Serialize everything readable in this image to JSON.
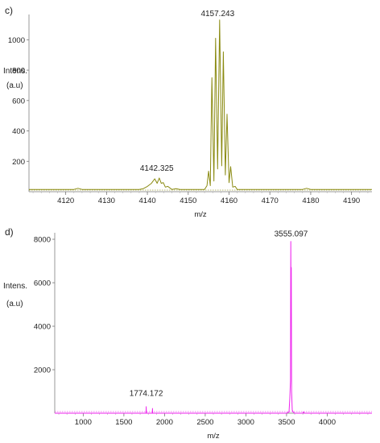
{
  "chart_data": [
    {
      "type": "line",
      "panel_label": "c)",
      "xlabel": "m/z",
      "ylabel": [
        "Intens.",
        "(a.u)"
      ],
      "xlim": [
        4111,
        4195
      ],
      "ylim": [
        0,
        1145
      ],
      "x_ticks": [
        4120,
        4130,
        4140,
        4150,
        4160,
        4170,
        4180,
        4190
      ],
      "y_ticks": [
        200,
        400,
        600,
        800,
        1000
      ],
      "color": "#8a8a10",
      "peak_labels": [
        {
          "text": "4142.325",
          "x": 4142.3,
          "y": 110
        },
        {
          "text": "4157.243",
          "x": 4157.2,
          "y": 1130
        }
      ],
      "series": [
        {
          "x": [
            4111,
            4122,
            4123,
            4124,
            4138,
            4139,
            4140,
            4141,
            4141.8,
            4142.4,
            4142.9,
            4143.4,
            4143.9,
            4144.4,
            4145,
            4146,
            4147,
            4148,
            4154,
            4154.6,
            4155,
            4155.4,
            4155.8,
            4156.3,
            4156.7,
            4157.2,
            4157.7,
            4158.2,
            4158.6,
            4159.1,
            4159.5,
            4160,
            4160.4,
            4160.9,
            4161.5,
            4162,
            4163,
            4178,
            4179,
            4180,
            4181,
            4195
          ],
          "y": [
            15,
            15,
            22,
            15,
            15,
            20,
            35,
            55,
            85,
            55,
            90,
            55,
            60,
            30,
            35,
            15,
            20,
            15,
            15,
            40,
            135,
            40,
            750,
            70,
            1010,
            150,
            1130,
            170,
            920,
            110,
            510,
            60,
            165,
            30,
            35,
            15,
            15,
            15,
            22,
            15,
            15,
            15
          ]
        }
      ]
    },
    {
      "type": "line",
      "panel_label": "d)",
      "xlabel": "m/z",
      "ylabel": [
        "Intens.",
        "(a.u)"
      ],
      "xlim": [
        650,
        4550
      ],
      "ylim": [
        0,
        8150
      ],
      "x_ticks": [
        1000,
        1500,
        2000,
        2500,
        3000,
        3500,
        4000
      ],
      "y_ticks": [
        2000,
        4000,
        6000,
        8000
      ],
      "color": "#ee22ee",
      "peak_labels": [
        {
          "text": "1774.172",
          "x": 1774,
          "y": 620
        },
        {
          "text": "3555.097",
          "x": 3555,
          "y": 7950
        }
      ],
      "series": [
        {
          "x": [
            650,
            1700,
            1772,
            1774,
            1776,
            1850,
            1852,
            1854,
            3500,
            3530,
            3540,
            3548,
            3552,
            3555,
            3558,
            3562,
            3570,
            3580,
            3600,
            3700,
            3710,
            3720,
            4550
          ],
          "y": [
            0,
            0,
            0,
            300,
            0,
            0,
            220,
            0,
            0,
            60,
            700,
            1500,
            7900,
            4200,
            6700,
            1000,
            150,
            60,
            0,
            0,
            60,
            0,
            0
          ]
        }
      ]
    }
  ]
}
